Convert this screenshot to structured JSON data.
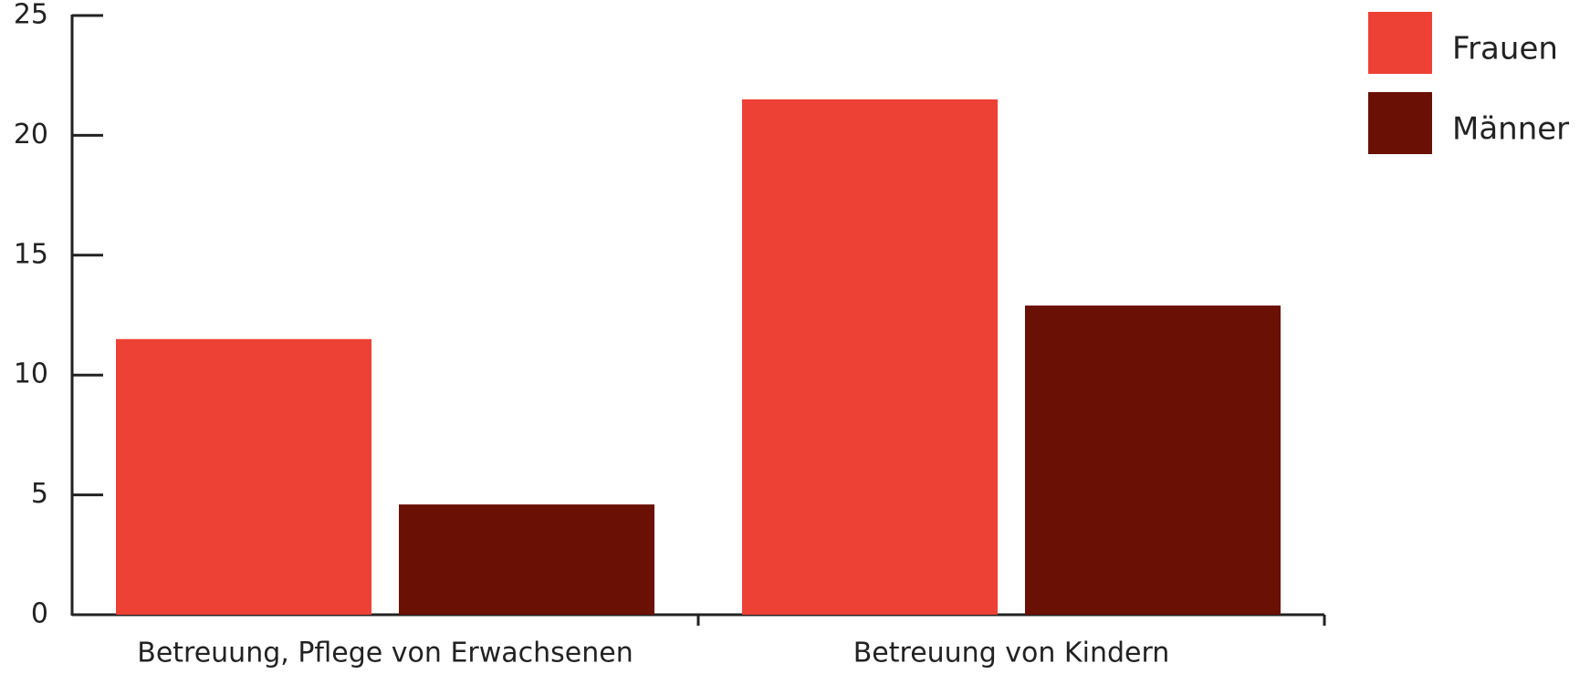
{
  "chart_data": {
    "type": "bar",
    "categories": [
      "Betreuung, Pflege von Erwachsenen",
      "Betreuung von Kindern"
    ],
    "series": [
      {
        "name": "Frauen",
        "color": "#ee4136",
        "values": [
          11.5,
          21.5
        ]
      },
      {
        "name": "Männer",
        "color": "#6a1005",
        "values": [
          4.6,
          12.9
        ]
      }
    ],
    "ylim": [
      0,
      25
    ],
    "yticks": [
      0,
      5,
      10,
      15,
      20,
      25
    ],
    "legend": "top-right"
  }
}
